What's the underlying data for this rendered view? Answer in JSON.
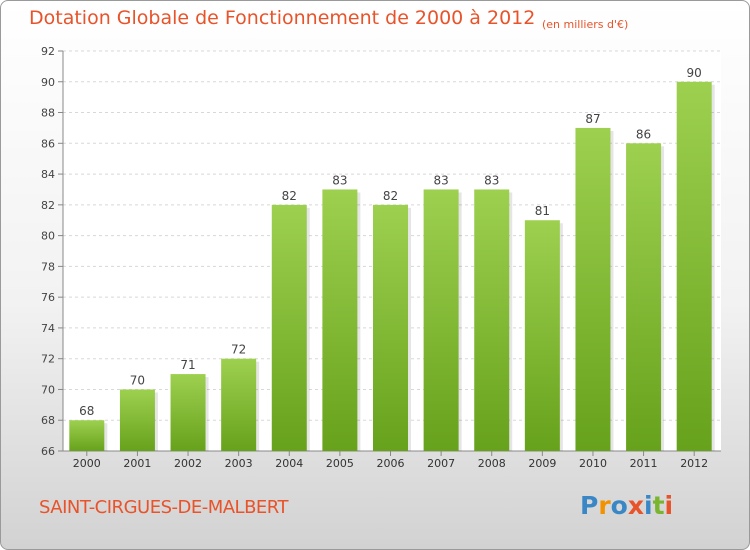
{
  "chart_data": {
    "type": "bar",
    "title": "Dotation Globale de Fonctionnement de 2000 à 2012",
    "subtitle": "(en milliers d'€)",
    "categories": [
      "2000",
      "2001",
      "2002",
      "2003",
      "2004",
      "2005",
      "2006",
      "2007",
      "2008",
      "2009",
      "2010",
      "2011",
      "2012"
    ],
    "values": [
      68,
      70,
      71,
      72,
      82,
      83,
      82,
      83,
      83,
      81,
      87,
      86,
      90
    ],
    "ylim": [
      66,
      92
    ],
    "yticks": [
      66,
      68,
      70,
      72,
      74,
      76,
      78,
      80,
      82,
      84,
      86,
      88,
      90,
      92
    ],
    "xlabel": "",
    "ylabel": "",
    "grid": true,
    "bar_color_top": "#9dd04f",
    "bar_color_bottom": "#67a21c"
  },
  "footer": {
    "commune": "SAINT-CIRGUES-DE-MALBERT"
  },
  "logo": {
    "text": "Proxiti",
    "letter_colors": [
      "#3b87c6",
      "#f39200",
      "#3b87c6",
      "#e8532a",
      "#3b87c6",
      "#7ab530",
      "#e8532a"
    ]
  },
  "colors": {
    "accent": "#e8532a"
  }
}
